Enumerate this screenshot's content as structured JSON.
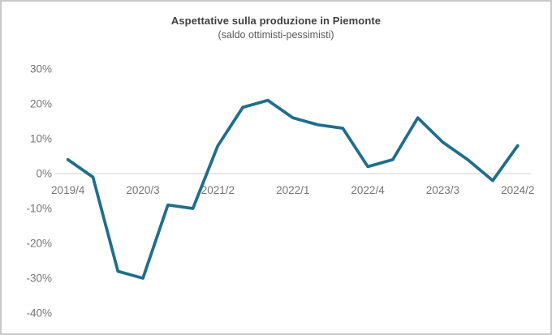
{
  "chart_data": {
    "type": "line",
    "title": "Aspettative sulla produzione in Piemonte",
    "subtitle": "(saldo ottimisti-pessimisti)",
    "series_name": "saldo ottimisti-pessimisti",
    "categories": [
      "2019/4",
      "2020/1",
      "2020/2",
      "2020/3",
      "2020/4",
      "2021/1",
      "2021/2",
      "2021/3",
      "2021/4",
      "2022/1",
      "2022/2",
      "2022/3",
      "2022/4",
      "2023/1",
      "2023/2",
      "2023/3",
      "2023/4",
      "2024/1",
      "2024/2"
    ],
    "values": [
      4,
      -1,
      -28,
      -30,
      -9,
      -10,
      8,
      19,
      21,
      16,
      14,
      13,
      2,
      4,
      16,
      9,
      4,
      -2,
      8
    ],
    "x_axis": {
      "tick_labels": [
        "2019/4",
        "2020/3",
        "2021/2",
        "2022/1",
        "2022/4",
        "2023/3",
        "2024/2"
      ],
      "tick_indices": [
        0,
        3,
        6,
        9,
        12,
        15,
        18
      ]
    },
    "y_axis": {
      "tick_labels": [
        "30%",
        "20%",
        "10%",
        "0%",
        "-10%",
        "-20%",
        "-30%",
        "-40%"
      ],
      "tick_values": [
        30,
        20,
        10,
        0,
        -10,
        -20,
        -30,
        -40
      ],
      "range": [
        -40,
        30
      ]
    },
    "grid": "zero-line-only",
    "legend": "none",
    "colors": {
      "line": "#1f6e8c",
      "zero_gridline": "#d9d9d9",
      "axis_labels": "#757575",
      "title": "#404040",
      "subtitle": "#595959",
      "frame_border": "#c9c9c9",
      "background": "#ffffff"
    }
  }
}
